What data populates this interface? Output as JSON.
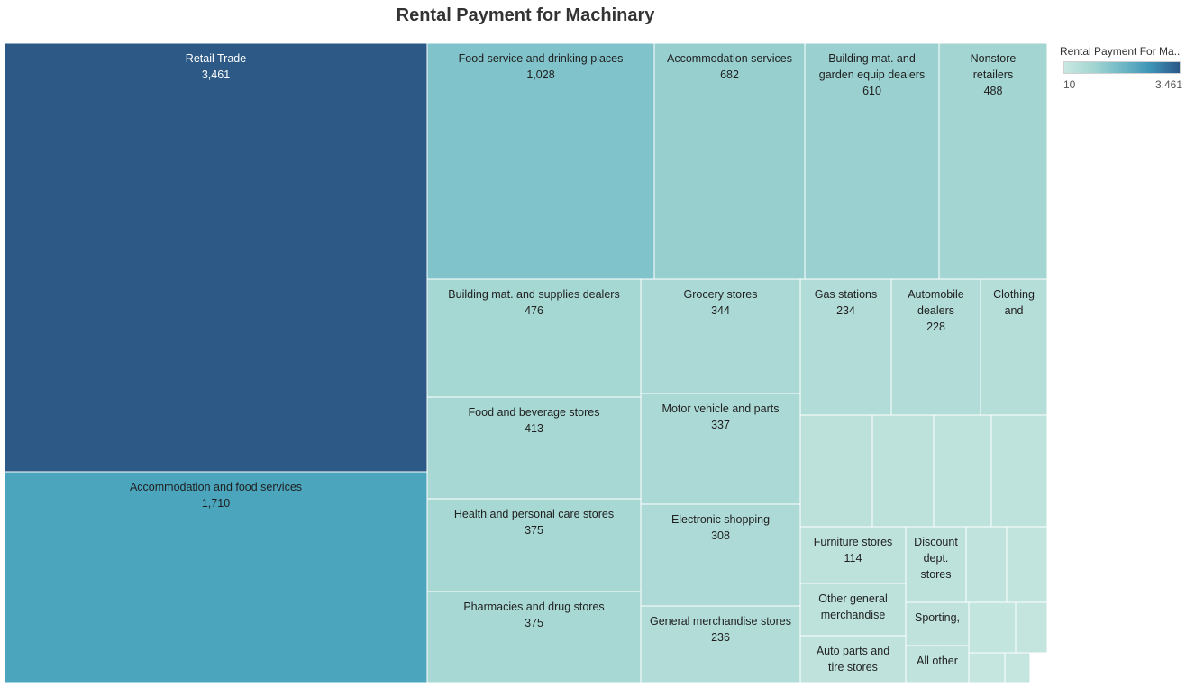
{
  "title": "Rental Payment for Machinary",
  "legend": {
    "title": "Rental Payment For Ma..",
    "min_label": "10",
    "max_label": "3,461",
    "colors": [
      "#c9e8e2",
      "#a4d6d2",
      "#6fb8c6",
      "#3d93b6",
      "#2b5888"
    ]
  },
  "chart_data": {
    "type": "treemap",
    "title": "Rental Payment for Machinary",
    "color_range": [
      10,
      3461
    ],
    "nodes": [
      {
        "name": "Retail Trade",
        "label": [
          "Retail Trade"
        ],
        "value": 3461,
        "value_label": "3,461",
        "color": "#2d5986"
      },
      {
        "name": "Accommodation and food services",
        "label": [
          "Accommodation and food services"
        ],
        "value": 1710,
        "value_label": "1,710",
        "color": "#4ba5bc"
      },
      {
        "name": "Food service and drinking places",
        "label": [
          "Food service and drinking places"
        ],
        "value": 1028,
        "value_label": "1,028",
        "color": "#81c3cb"
      },
      {
        "name": "Accommodation services",
        "label": [
          "Accommodation services"
        ],
        "value": 682,
        "value_label": "682",
        "color": "#97cfcf"
      },
      {
        "name": "Building mat. and garden equip dealers",
        "label": [
          "Building mat. and",
          "garden equip dealers"
        ],
        "value": 610,
        "value_label": "610",
        "color": "#9ad1d0"
      },
      {
        "name": "Nonstore retailers",
        "label": [
          "Nonstore",
          "retailers"
        ],
        "value": 488,
        "value_label": "488",
        "color": "#a3d5d2"
      },
      {
        "name": "Building mat. and supplies dealers",
        "label": [
          "Building mat. and supplies dealers"
        ],
        "value": 476,
        "value_label": "476",
        "color": "#a5d7d3"
      },
      {
        "name": "Food and beverage stores",
        "label": [
          "Food and beverage stores"
        ],
        "value": 413,
        "value_label": "413",
        "color": "#a7d8d4"
      },
      {
        "name": "Health and personal care stores",
        "label": [
          "Health and personal care stores"
        ],
        "value": 375,
        "value_label": "375",
        "color": "#a8d8d4"
      },
      {
        "name": "Pharmacies and drug stores",
        "label": [
          "Pharmacies and drug stores"
        ],
        "value": 375,
        "value_label": "375",
        "color": "#a8d8d4"
      },
      {
        "name": "Grocery stores",
        "label": [
          "Grocery stores"
        ],
        "value": 344,
        "value_label": "344",
        "color": "#abd9d5"
      },
      {
        "name": "Motor vehicle and parts",
        "label": [
          "Motor vehicle and parts"
        ],
        "value": 337,
        "value_label": "337",
        "color": "#abd9d5"
      },
      {
        "name": "Electronic shopping",
        "label": [
          "Electronic shopping"
        ],
        "value": 308,
        "value_label": "308",
        "color": "#addad6"
      },
      {
        "name": "General merchandise stores",
        "label": [
          "General merchandise stores"
        ],
        "value": 236,
        "value_label": "236",
        "color": "#b1dcd7"
      },
      {
        "name": "Gas stations",
        "label": [
          "Gas stations"
        ],
        "value": 234,
        "value_label": "234",
        "color": "#b2dcd7"
      },
      {
        "name": "Automobile dealers",
        "label": [
          "Automobile",
          "dealers"
        ],
        "value": 228,
        "value_label": "228",
        "color": "#b2dcd7"
      },
      {
        "name": "Clothing and",
        "label": [
          "Clothing",
          "and"
        ],
        "value": null,
        "value_label": "",
        "color": "#b6ded9"
      },
      {
        "name": "Furniture stores",
        "label": [
          "Furniture stores"
        ],
        "value": 114,
        "value_label": "114",
        "color": "#bce2db"
      },
      {
        "name": "Discount dept. stores",
        "label": [
          "Discount",
          "dept.",
          "stores"
        ],
        "value": null,
        "value_label": "",
        "color": "#bde2dc"
      },
      {
        "name": "Other general merchandise",
        "label": [
          "Other general",
          "merchandise"
        ],
        "value": null,
        "value_label": "",
        "color": "#bde2dc"
      },
      {
        "name": "Sporting,",
        "label": [
          "Sporting,"
        ],
        "value": null,
        "value_label": "",
        "color": "#bfe3dc"
      },
      {
        "name": "Auto parts and tire stores",
        "label": [
          "Auto parts and",
          "tire stores"
        ],
        "value": null,
        "value_label": "",
        "color": "#bfe3dc"
      },
      {
        "name": "All other",
        "label": [
          "All other"
        ],
        "value": null,
        "value_label": "",
        "color": "#c0e4dd"
      },
      {
        "name": "",
        "label": [],
        "value": null,
        "value_label": "",
        "color": "#bbe1da"
      },
      {
        "name": "",
        "label": [],
        "value": null,
        "value_label": "",
        "color": "#bde2dc"
      },
      {
        "name": "",
        "label": [],
        "value": null,
        "value_label": "",
        "color": "#bee3dc"
      },
      {
        "name": "",
        "label": [],
        "value": null,
        "value_label": "",
        "color": "#bee3dc"
      },
      {
        "name": "",
        "label": [],
        "value": null,
        "value_label": "",
        "color": "#c0e4dd"
      },
      {
        "name": "",
        "label": [],
        "value": null,
        "value_label": "",
        "color": "#c1e4dd"
      },
      {
        "name": "",
        "label": [],
        "value": null,
        "value_label": "",
        "color": "#c2e5de"
      },
      {
        "name": "",
        "label": [],
        "value": null,
        "value_label": "",
        "color": "#c3e5de"
      },
      {
        "name": "",
        "label": [],
        "value": null,
        "value_label": "",
        "color": "#c4e6df"
      },
      {
        "name": "",
        "label": [],
        "value": null,
        "value_label": "",
        "color": "#c5e6df"
      }
    ]
  }
}
